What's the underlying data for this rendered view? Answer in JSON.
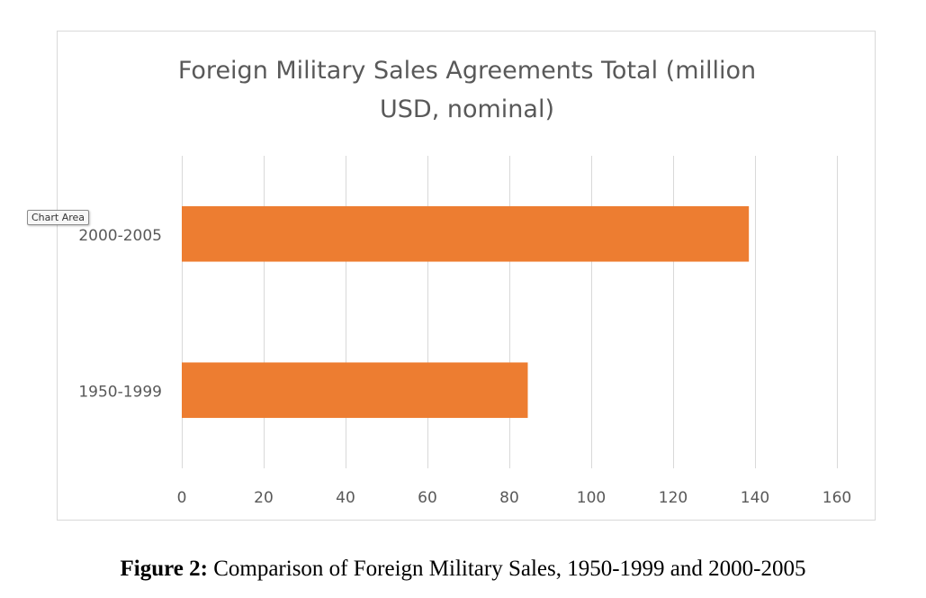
{
  "chart_data": {
    "type": "bar",
    "orientation": "horizontal",
    "title": "Foreign Military Sales Agreements Total (million USD, nominal)",
    "title_lines": [
      "Foreign Military Sales Agreements Total (million",
      "USD, nominal)"
    ],
    "categories": [
      "1950-1999",
      "2000-2005"
    ],
    "values": [
      84.5,
      138.5
    ],
    "xlim": [
      0,
      160
    ],
    "x_ticks": [
      0,
      20,
      40,
      60,
      80,
      100,
      120,
      140,
      160
    ],
    "xlabel": "",
    "ylabel": "",
    "grid": "vertical",
    "legend": "none",
    "bar_color": "#ED7D31",
    "gridline_color": "#D9D9D9",
    "label_color": "#595959"
  },
  "tooltip": {
    "label": "Chart Area"
  },
  "caption": {
    "prefix": "Figure 2:",
    "text": " Comparison of Foreign Military Sales, 1950-1999 and 2000-2005"
  }
}
